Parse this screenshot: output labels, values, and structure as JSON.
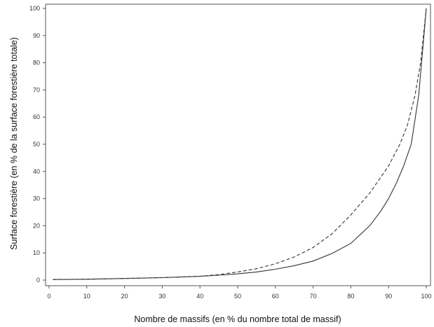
{
  "chart_data": {
    "type": "line",
    "title": "",
    "xlabel": "Nombre de massifs (en % du nombre total de massif)",
    "ylabel": "Surface forestière (en % de la surface forestière totale)",
    "xlim": [
      0,
      100
    ],
    "ylim": [
      0,
      100
    ],
    "x_ticks": [
      0,
      10,
      20,
      30,
      40,
      50,
      60,
      70,
      80,
      90,
      100
    ],
    "y_ticks": [
      0,
      10,
      20,
      30,
      40,
      50,
      60,
      70,
      80,
      90,
      100
    ],
    "grid": false,
    "legend": "none",
    "series": [
      {
        "style": "solid",
        "color": "#333333",
        "x": [
          1,
          10,
          20,
          30,
          40,
          45,
          50,
          55,
          60,
          65,
          70,
          75,
          80,
          85,
          88,
          90,
          92,
          94,
          96,
          98,
          100
        ],
        "y": [
          0.2,
          0.3,
          0.6,
          0.9,
          1.4,
          1.8,
          2.3,
          3,
          4,
          5.3,
          7,
          9.8,
          13.5,
          20,
          25.5,
          30,
          35.5,
          42,
          50,
          68,
          100
        ]
      },
      {
        "style": "dashed",
        "color": "#333333",
        "x": [
          1,
          10,
          20,
          30,
          40,
          45,
          50,
          55,
          60,
          65,
          70,
          75,
          80,
          85,
          90,
          93,
          95,
          97,
          98.5,
          100
        ],
        "y": [
          0.2,
          0.3,
          0.6,
          0.9,
          1.4,
          2,
          3,
          4.2,
          6,
          8.5,
          12,
          17,
          24,
          32,
          42,
          50,
          57,
          68,
          80,
          100
        ]
      }
    ]
  }
}
